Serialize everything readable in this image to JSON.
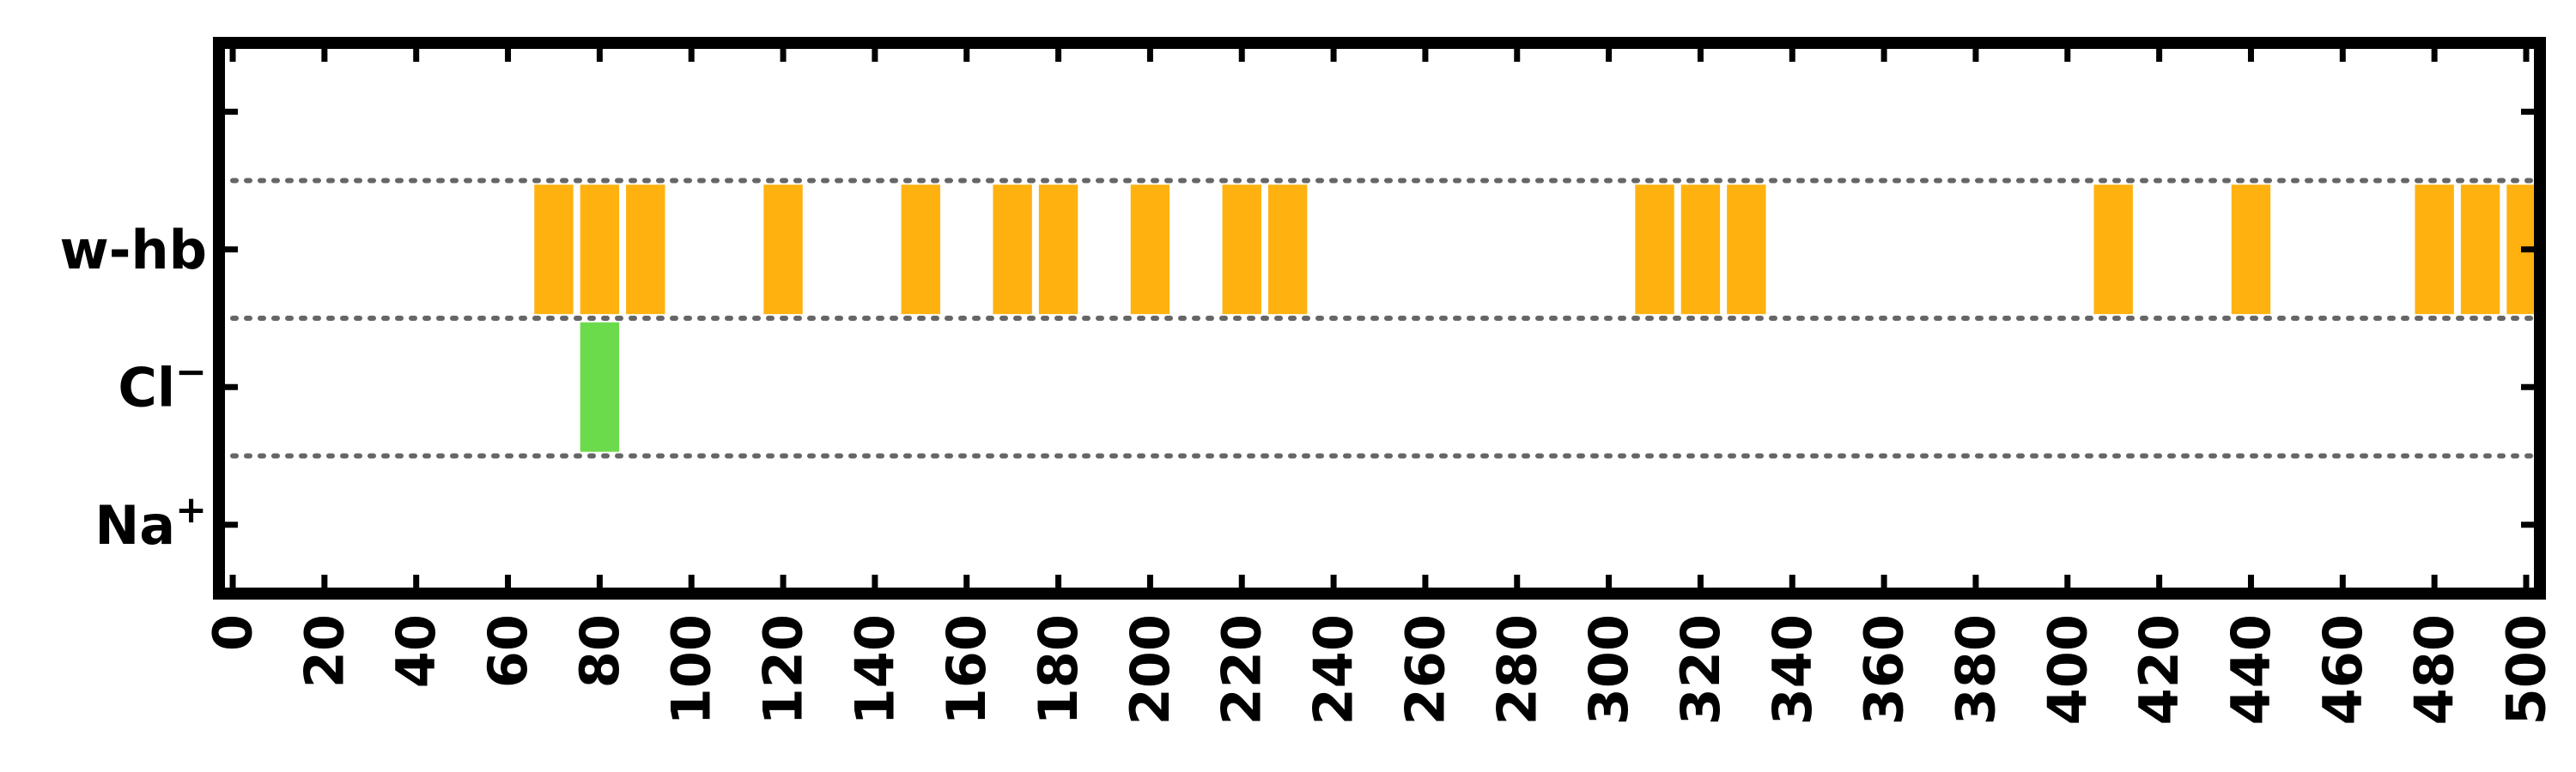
{
  "chart_data": {
    "type": "bar",
    "orientation": "horizontal-event-raster",
    "title": "",
    "xlabel": "",
    "ylabel": "",
    "xlim": [
      -3,
      503
    ],
    "ylim": [
      -0.5,
      3.5
    ],
    "grid": "dotted horizontal separators between rows",
    "legend": "none",
    "xticks": [
      0,
      20,
      40,
      60,
      80,
      100,
      120,
      140,
      160,
      180,
      200,
      220,
      240,
      260,
      280,
      300,
      320,
      340,
      360,
      380,
      400,
      420,
      440,
      460,
      480,
      500
    ],
    "xtick_labels": [
      "0",
      "20",
      "40",
      "60",
      "80",
      "100",
      "120",
      "140",
      "160",
      "180",
      "200",
      "220",
      "240",
      "260",
      "280",
      "300",
      "320",
      "340",
      "360",
      "380",
      "400",
      "420",
      "440",
      "460",
      "480",
      "500"
    ],
    "categories": [
      {
        "label": "Na",
        "superscript": "+",
        "y": 0
      },
      {
        "label": "Cl",
        "superscript": "−",
        "y": 1
      },
      {
        "label": "w-hb",
        "superscript": "",
        "y": 2
      }
    ],
    "row_separators": [
      0.5,
      1.5,
      2.5
    ],
    "bar_width": 8.5,
    "series": [
      {
        "category": "w-hb",
        "color": "#FFB20F",
        "x": [
          70,
          80,
          90,
          120,
          150,
          170,
          180,
          200,
          220,
          230,
          310,
          320,
          330,
          410,
          440,
          480,
          490,
          500
        ]
      },
      {
        "category": "Cl−",
        "color": "#6BDB4C",
        "x": [
          80
        ]
      },
      {
        "category": "Na+",
        "color": "#4C7BDB",
        "x": []
      }
    ]
  }
}
